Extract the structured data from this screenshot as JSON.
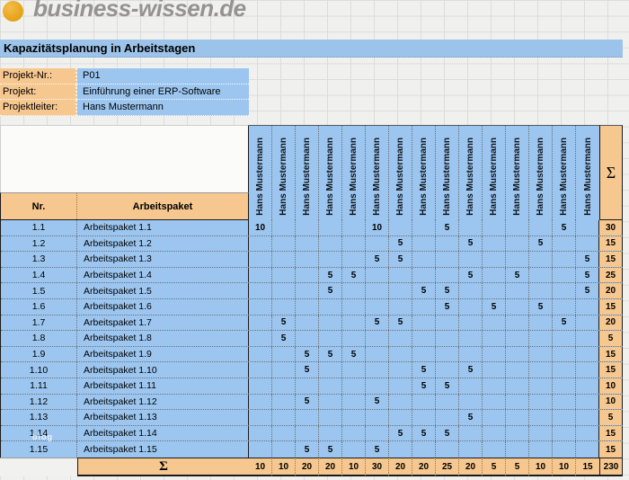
{
  "brand": {
    "name": "business-wissen.de",
    "logo_icon": "orange-circle-icon"
  },
  "title": "Kapazitätsplanung in Arbeitstagen",
  "project": {
    "fields": [
      {
        "label": "Projekt-Nr.:",
        "value": "P01"
      },
      {
        "label": "Projekt:",
        "value": "Einführung einer ERP-Software"
      },
      {
        "label": "Projektleiter:",
        "value": "Hans Mustermann"
      }
    ]
  },
  "table": {
    "col_nr": "Nr.",
    "col_package": "Arbeitspaket",
    "sigma": "Σ",
    "people": [
      "Hans Mustermann",
      "Hans Mustermann",
      "Hans Mustermann",
      "Hans Mustermann",
      "Hans Mustermann",
      "Hans Mustermann",
      "Hans Mustermann",
      "Hans Mustermann",
      "Hans Mustermann",
      "Hans Mustermann",
      "Hans Mustermann",
      "Hans Mustermann",
      "Hans Mustermann",
      "Hans Mustermann",
      "Hans Mustermann"
    ],
    "rows": [
      {
        "nr": "1.1",
        "name": "Arbeitspaket 1.1",
        "values": [
          "10",
          "",
          "",
          "",
          "",
          "10",
          "",
          "",
          "5",
          "",
          "",
          "",
          "",
          "5",
          ""
        ],
        "sum": "30"
      },
      {
        "nr": "1.2",
        "name": "Arbeitspaket 1.2",
        "values": [
          "",
          "",
          "",
          "",
          "",
          "",
          "5",
          "",
          "",
          "5",
          "",
          "",
          "5",
          "",
          ""
        ],
        "sum": "15"
      },
      {
        "nr": "1.3",
        "name": "Arbeitspaket 1.3",
        "values": [
          "",
          "",
          "",
          "",
          "",
          "5",
          "5",
          "",
          "",
          "",
          "",
          "",
          "",
          "",
          "5"
        ],
        "sum": "15"
      },
      {
        "nr": "1.4",
        "name": "Arbeitspaket 1.4",
        "values": [
          "",
          "",
          "",
          "5",
          "5",
          "",
          "",
          "",
          "",
          "5",
          "",
          "5",
          "",
          "",
          "5"
        ],
        "sum": "25"
      },
      {
        "nr": "1.5",
        "name": "Arbeitspaket 1.5",
        "values": [
          "",
          "",
          "",
          "5",
          "",
          "",
          "",
          "5",
          "5",
          "",
          "",
          "",
          "",
          "",
          "5"
        ],
        "sum": "20"
      },
      {
        "nr": "1.6",
        "name": "Arbeitspaket 1.6",
        "values": [
          "",
          "",
          "",
          "",
          "",
          "",
          "",
          "",
          "5",
          "",
          "5",
          "",
          "5",
          "",
          ""
        ],
        "sum": "15"
      },
      {
        "nr": "1.7",
        "name": "Arbeitspaket 1.7",
        "values": [
          "",
          "5",
          "",
          "",
          "",
          "5",
          "5",
          "",
          "",
          "",
          "",
          "",
          "",
          "5",
          ""
        ],
        "sum": "20"
      },
      {
        "nr": "1.8",
        "name": "Arbeitspaket 1.8",
        "values": [
          "",
          "5",
          "",
          "",
          "",
          "",
          "",
          "",
          "",
          "",
          "",
          "",
          "",
          "",
          ""
        ],
        "sum": "5"
      },
      {
        "nr": "1.9",
        "name": "Arbeitspaket 1.9",
        "values": [
          "",
          "",
          "5",
          "5",
          "5",
          "",
          "",
          "",
          "",
          "",
          "",
          "",
          "",
          "",
          ""
        ],
        "sum": "15"
      },
      {
        "nr": "1.10",
        "name": "Arbeitspaket 1.10",
        "values": [
          "",
          "",
          "5",
          "",
          "",
          "",
          "",
          "5",
          "",
          "5",
          "",
          "",
          "",
          "",
          ""
        ],
        "sum": "15"
      },
      {
        "nr": "1.11",
        "name": "Arbeitspaket 1.11",
        "values": [
          "",
          "",
          "",
          "",
          "",
          "",
          "",
          "5",
          "5",
          "",
          "",
          "",
          "",
          "",
          ""
        ],
        "sum": "10"
      },
      {
        "nr": "1.12",
        "name": "Arbeitspaket 1.12",
        "values": [
          "",
          "",
          "5",
          "",
          "",
          "5",
          "",
          "",
          "",
          "",
          "",
          "",
          "",
          "",
          ""
        ],
        "sum": "10"
      },
      {
        "nr": "1.13",
        "name": "Arbeitspaket 1.13",
        "values": [
          "",
          "",
          "",
          "",
          "",
          "",
          "",
          "",
          "",
          "5",
          "",
          "",
          "",
          "",
          ""
        ],
        "sum": "5"
      },
      {
        "nr": "1.14",
        "name": "Arbeitspaket 1.14",
        "values": [
          "",
          "",
          "",
          "",
          "",
          "",
          "5",
          "5",
          "5",
          "",
          "",
          "",
          "",
          "",
          ""
        ],
        "sum": "15"
      },
      {
        "nr": "1.15",
        "name": "Arbeitspaket 1.15",
        "values": [
          "",
          "",
          "5",
          "5",
          "",
          "5",
          "",
          "",
          "",
          "",
          "",
          "",
          "",
          "",
          ""
        ],
        "sum": "15"
      }
    ],
    "footer": {
      "sigma": "Σ",
      "sums": [
        "10",
        "10",
        "20",
        "20",
        "10",
        "30",
        "20",
        "20",
        "25",
        "20",
        "5",
        "5",
        "10",
        "10",
        "15"
      ],
      "total": "230"
    }
  },
  "watermark": "blog",
  "colors": {
    "cell_blue": "#9CC6EF",
    "cell_orange": "#F6C78F",
    "title_band_blue": "#9CC3E9",
    "logo_circle_orange": "#E8A41E",
    "border_dark": "#1A1A1A"
  }
}
